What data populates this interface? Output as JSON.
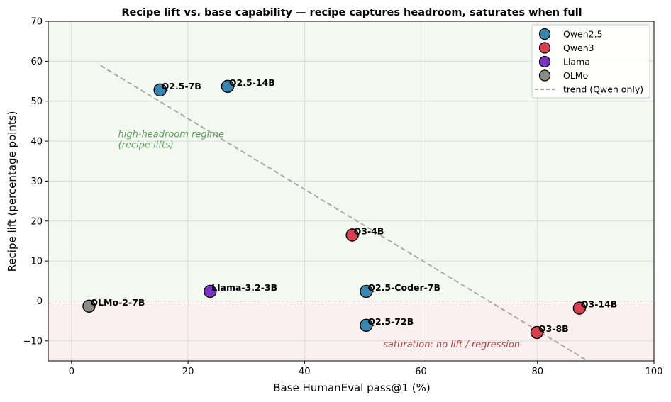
{
  "chart_data": {
    "type": "scatter",
    "title": "Recipe lift vs. base capability — recipe captures headroom, saturates when full",
    "xlabel": "Base HumanEval pass@1 (%)",
    "ylabel": "Recipe lift (percentage points)",
    "xlim": [
      -4,
      100
    ],
    "ylim": [
      -15,
      70
    ],
    "xticks": [
      0,
      20,
      40,
      60,
      80,
      100
    ],
    "yticks": [
      -10,
      0,
      10,
      20,
      30,
      40,
      50,
      60,
      70
    ],
    "grid": true,
    "legend_position": "top-right",
    "regions": [
      {
        "name": "headroom",
        "y_from": 0,
        "y_to": 70,
        "color": "#f3f8f1"
      },
      {
        "name": "saturation",
        "y_from": -15,
        "y_to": 0,
        "color": "#fbf0f0"
      }
    ],
    "zero_line": 0,
    "series": [
      {
        "name": "Qwen2.5",
        "color": "#3a86ae",
        "points": [
          {
            "label": "Q2.5-7B",
            "x": 15.2,
            "y": 52.8
          },
          {
            "label": "Q2.5-14B",
            "x": 26.8,
            "y": 53.7
          },
          {
            "label": "Q2.5-Coder-7B",
            "x": 50.6,
            "y": 2.4
          },
          {
            "label": "Q2.5-72B",
            "x": 50.6,
            "y": -6.1
          }
        ]
      },
      {
        "name": "Qwen3",
        "color": "#d9404f",
        "points": [
          {
            "label": "Q3-4B",
            "x": 48.2,
            "y": 16.5
          },
          {
            "label": "Q3-14B",
            "x": 87.2,
            "y": -1.8
          },
          {
            "label": "Q3-8B",
            "x": 79.9,
            "y": -7.9
          }
        ]
      },
      {
        "name": "Llama",
        "color": "#7a33bf",
        "points": [
          {
            "label": "Llama-3.2-3B",
            "x": 23.8,
            "y": 2.4
          }
        ]
      },
      {
        "name": "OLMo",
        "color": "#8b8b8b",
        "points": [
          {
            "label": "OLMo-2-7B",
            "x": 3.0,
            "y": -1.3
          }
        ]
      }
    ],
    "trend": {
      "name": "trend (Qwen only)",
      "x": [
        5,
        88.6
      ],
      "y": [
        58.9,
        -15
      ],
      "color": "#aaaaaa"
    },
    "annotations": [
      {
        "id": "headroom-note",
        "lines": [
          "high-headroom regime",
          "(recipe lifts)"
        ],
        "x": 8,
        "y": 41,
        "color": "#5a9b5a"
      },
      {
        "id": "saturation-note",
        "lines": [
          "saturation: no lift / regression"
        ],
        "x": 53.5,
        "y": -11.6,
        "color": "#b54848"
      }
    ]
  }
}
